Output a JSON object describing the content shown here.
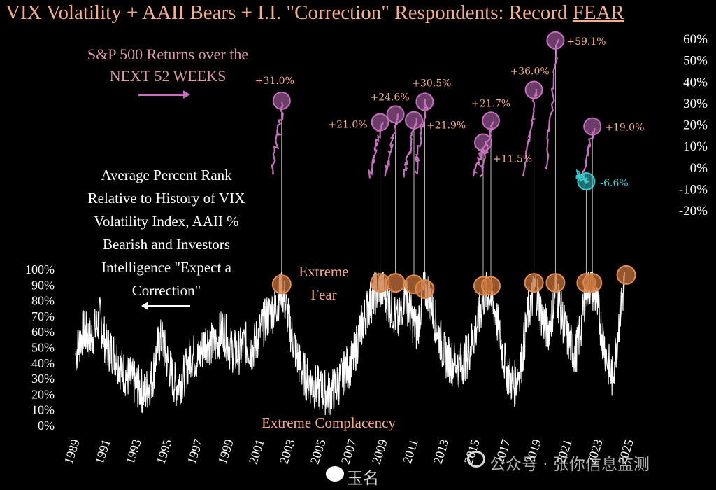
{
  "title_main": "VIX Volatility + AAII Bears + I.I. \"Correction\" Respondents: Record ",
  "title_emph": "FEAR",
  "annotations": {
    "sp500": "S&P 500 Returns over the NEXT 52 WEEKS",
    "rank": "Average Percent Rank Relative to History of VIX Volatility Index, AAII % Bearish and Investors Intelligence \"Expect a Correction\"",
    "extreme_fear": "Extreme Fear",
    "extreme_complacency": "Extreme Complacency"
  },
  "watermark": {
    "channel": "公众号 · 张你信息监测",
    "weibo": "玉名"
  },
  "colors": {
    "background": "#000000",
    "title": "#f2ad8f",
    "rank_line": "#ffffff",
    "fear_marker": "#c7733b",
    "returns_positive": "#c56fbd",
    "returns_negative": "#3fc7d0",
    "return_label": "#f2ad8f",
    "return_label_negative": "#4ad3e0"
  },
  "chart_data": [
    {
      "type": "line",
      "name": "Average Percent Rank",
      "x_range": [
        1989,
        2025
      ],
      "ylim": [
        0,
        100
      ],
      "y_ticks": [
        "0%",
        "10%",
        "20%",
        "30%",
        "40%",
        "50%",
        "60%",
        "70%",
        "80%",
        "90%",
        "100%"
      ],
      "x_ticks": [
        "1989",
        "1991",
        "1993",
        "1995",
        "1997",
        "1999",
        "2001",
        "2003",
        "2005",
        "2007",
        "2009",
        "2011",
        "2013",
        "2015",
        "2017",
        "2019",
        "2021",
        "2023",
        "2025"
      ],
      "points": [
        [
          1989.0,
          45
        ],
        [
          1989.5,
          60
        ],
        [
          1990.0,
          55
        ],
        [
          1990.6,
          68
        ],
        [
          1991.0,
          50
        ],
        [
          1991.6,
          45
        ],
        [
          1992.0,
          35
        ],
        [
          1992.5,
          30
        ],
        [
          1993.0,
          25
        ],
        [
          1993.5,
          20
        ],
        [
          1994.0,
          30
        ],
        [
          1994.3,
          48
        ],
        [
          1994.6,
          55
        ],
        [
          1995.0,
          40
        ],
        [
          1995.5,
          25
        ],
        [
          1996.0,
          30
        ],
        [
          1996.5,
          45
        ],
        [
          1997.0,
          42
        ],
        [
          1997.5,
          55
        ],
        [
          1998.0,
          50
        ],
        [
          1998.6,
          62
        ],
        [
          1999.0,
          50
        ],
        [
          1999.5,
          45
        ],
        [
          2000.0,
          52
        ],
        [
          2000.5,
          48
        ],
        [
          2001.0,
          60
        ],
        [
          2001.5,
          70
        ],
        [
          2002.0,
          75
        ],
        [
          2002.4,
          88
        ],
        [
          2002.8,
          70
        ],
        [
          2003.0,
          60
        ],
        [
          2003.5,
          40
        ],
        [
          2004.0,
          30
        ],
        [
          2004.5,
          25
        ],
        [
          2005.0,
          22
        ],
        [
          2005.5,
          20
        ],
        [
          2006.0,
          25
        ],
        [
          2006.5,
          35
        ],
        [
          2007.0,
          40
        ],
        [
          2007.5,
          60
        ],
        [
          2008.0,
          75
        ],
        [
          2008.5,
          85
        ],
        [
          2008.9,
          88
        ],
        [
          2009.3,
          80
        ],
        [
          2009.7,
          72
        ],
        [
          2010.0,
          65
        ],
        [
          2010.4,
          85
        ],
        [
          2010.8,
          70
        ],
        [
          2011.2,
          60
        ],
        [
          2011.6,
          85
        ],
        [
          2011.9,
          86
        ],
        [
          2012.3,
          70
        ],
        [
          2012.7,
          55
        ],
        [
          2013.0,
          45
        ],
        [
          2013.5,
          40
        ],
        [
          2014.0,
          38
        ],
        [
          2014.5,
          45
        ],
        [
          2015.0,
          60
        ],
        [
          2015.6,
          84
        ],
        [
          2015.9,
          85
        ],
        [
          2016.3,
          72
        ],
        [
          2016.7,
          50
        ],
        [
          2017.0,
          35
        ],
        [
          2017.5,
          25
        ],
        [
          2018.0,
          40
        ],
        [
          2018.4,
          72
        ],
        [
          2018.9,
          88
        ],
        [
          2019.3,
          70
        ],
        [
          2019.7,
          60
        ],
        [
          2020.0,
          72
        ],
        [
          2020.2,
          88
        ],
        [
          2020.6,
          70
        ],
        [
          2021.0,
          55
        ],
        [
          2021.5,
          45
        ],
        [
          2021.9,
          65
        ],
        [
          2022.2,
          88
        ],
        [
          2022.5,
          90
        ],
        [
          2022.8,
          82
        ],
        [
          2023.2,
          60
        ],
        [
          2023.6,
          40
        ],
        [
          2023.9,
          30
        ],
        [
          2024.2,
          55
        ],
        [
          2024.5,
          80
        ],
        [
          2024.8,
          94
        ]
      ]
    },
    {
      "type": "scatter",
      "name": "S&P 500 Returns over the NEXT 52 WEEKS",
      "ylim": [
        -20,
        60
      ],
      "y_ticks": [
        "-20%",
        "-10%",
        "0%",
        "10%",
        "20%",
        "30%",
        "40%",
        "50%",
        "60%"
      ],
      "events": [
        {
          "x": 2002.4,
          "return": 31.0,
          "label": "+31.0%",
          "rank": 90
        },
        {
          "x": 2008.8,
          "return": 21.0,
          "label": "+21.0%",
          "rank": 91
        },
        {
          "x": 2009.8,
          "return": 24.6,
          "label": "+24.6%",
          "rank": 91
        },
        {
          "x": 2011.0,
          "return": 21.9,
          "label": "+21.9%",
          "rank": 90
        },
        {
          "x": 2011.7,
          "return": 30.5,
          "label": "+30.5%",
          "rank": 87
        },
        {
          "x": 2015.5,
          "return": 11.5,
          "label": "+11.5%",
          "rank": 89
        },
        {
          "x": 2016.0,
          "return": 21.7,
          "label": "+21.7%",
          "rank": 89
        },
        {
          "x": 2018.8,
          "return": 36.0,
          "label": "+36.0%",
          "rank": 91
        },
        {
          "x": 2020.2,
          "return": 59.1,
          "label": "+59.1%",
          "rank": 91
        },
        {
          "x": 2022.2,
          "return": -6.6,
          "label": "-6.6%",
          "rank": 91
        },
        {
          "x": 2022.6,
          "return": 19.0,
          "label": "+19.0%",
          "rank": 91
        },
        {
          "x": 2024.8,
          "return": null,
          "label": "",
          "rank": 96
        }
      ]
    }
  ]
}
